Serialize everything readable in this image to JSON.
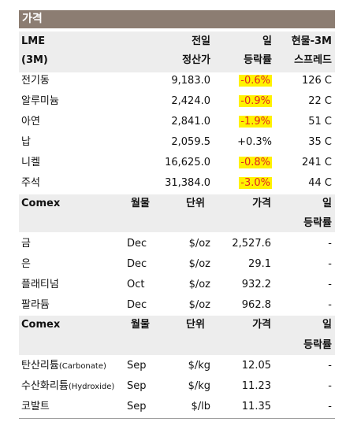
{
  "title": "가격",
  "lme": {
    "header": {
      "col1_line1": "LME",
      "col1_line2": "(3M)",
      "col2_line1": "전일",
      "col2_line2": "정산가",
      "col3_line1": "일",
      "col3_line2": "등락률",
      "col4_line1": "현물-3M",
      "col4_line2": "스프레드"
    },
    "rows": [
      {
        "name": "전기동",
        "price": "9,183.0",
        "change": "-0.6%",
        "spread": "126 C",
        "highlight": true
      },
      {
        "name": "알루미늄",
        "price": "2,424.0",
        "change": "-0.9%",
        "spread": "22 C",
        "highlight": true
      },
      {
        "name": "아연",
        "price": "2,841.0",
        "change": "-1.9%",
        "spread": "51 C",
        "highlight": true
      },
      {
        "name": "납",
        "price": "2,059.5",
        "change": "+0.3%",
        "spread": "35 C",
        "highlight": false
      },
      {
        "name": "니켈",
        "price": "16,625.0",
        "change": "-0.8%",
        "spread": "241 C",
        "highlight": true
      },
      {
        "name": "주석",
        "price": "31,384.0",
        "change": "-3.0%",
        "spread": "44 C",
        "highlight": true
      }
    ]
  },
  "comex1": {
    "header": {
      "col1": "Comex",
      "col2": "월물",
      "col3": "단위",
      "col4": "가격",
      "col5_line1": "일",
      "col5_line2": "등락률"
    },
    "rows": [
      {
        "name": "금",
        "month": "Dec",
        "unit": "$/oz",
        "price": "2,527.6",
        "change": "-"
      },
      {
        "name": "은",
        "month": "Dec",
        "unit": "$/oz",
        "price": "29.1",
        "change": "-"
      },
      {
        "name": "플래티넘",
        "month": "Oct",
        "unit": "$/oz",
        "price": "932.2",
        "change": "-"
      },
      {
        "name": "팔라듐",
        "month": "Dec",
        "unit": "$/oz",
        "price": "962.8",
        "change": "-"
      }
    ]
  },
  "comex2": {
    "header": {
      "col1": "Comex",
      "col2": "월물",
      "col3": "단위",
      "col4": "가격",
      "col5_line1": "일",
      "col5_line2": "등락률"
    },
    "rows": [
      {
        "name": "탄산리튬",
        "name_sub": "(Carbonate)",
        "month": "Sep",
        "unit": "$/kg",
        "price": "12.05",
        "change": "-"
      },
      {
        "name": "수산화리튬",
        "name_sub": "(Hydroxide)",
        "month": "Sep",
        "unit": "$/kg",
        "price": "11.23",
        "change": "-"
      },
      {
        "name": "코발트",
        "name_sub": "",
        "month": "Sep",
        "unit": "$/lb",
        "price": "11.35",
        "change": "-"
      }
    ]
  },
  "colors": {
    "title_bg": "#8c7d72",
    "header_band": "#ededed",
    "highlight_bg": "#fff200",
    "negative_text": "#e0261f"
  }
}
